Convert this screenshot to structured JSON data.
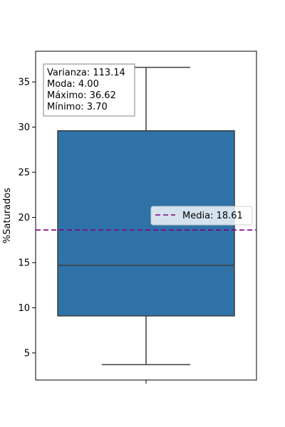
{
  "chart_data": {
    "type": "box",
    "ylabel": "%Saturados",
    "xlabel": "",
    "ylim": [
      2.0,
      38.4
    ],
    "yticks": [
      5,
      10,
      15,
      20,
      25,
      30,
      35
    ],
    "ytick_labels": [
      "5",
      "10",
      "15",
      "20",
      "25",
      "30",
      "35"
    ],
    "box": {
      "min": 3.7,
      "q1": 9.1,
      "median": 14.7,
      "q3": 29.6,
      "max": 36.62,
      "color": "#2f72a8",
      "edge_color": "#3d3d3d"
    },
    "mean_line": {
      "value": 18.61,
      "color": "#800080",
      "style": "dashed",
      "legend_label": "Media: 18.61"
    },
    "legend_position": "center-right",
    "stats_box": {
      "lines": [
        "Varianza: 113.14",
        "Moda: 4.00",
        "Máximo: 36.62",
        "Mínimo: 3.70"
      ],
      "position": "top-left"
    },
    "grid": false
  }
}
